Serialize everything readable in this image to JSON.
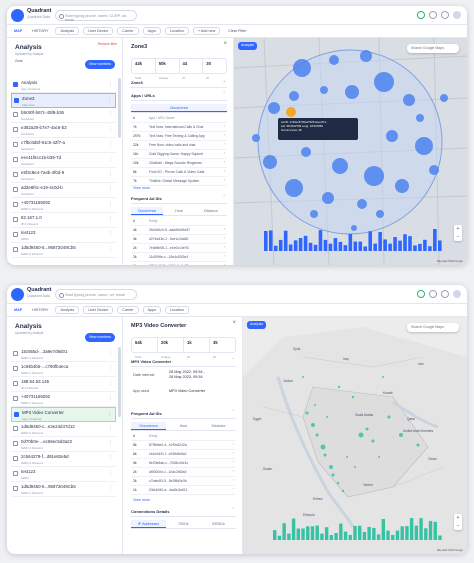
{
  "brand": {
    "name": "Quadrant",
    "tagline": "Quadrant Data"
  },
  "search_placeholder": "Start typing phone, name, CURP, url, email",
  "search_placeholder_short": "Start typing phone, name, url, email",
  "nav": {
    "map": "MAP",
    "history": "HISTORY"
  },
  "filters": {
    "analysis": "Analysis",
    "user_device": "User Device",
    "carrier": "Carrier",
    "apps": "Apps",
    "location": "Location",
    "add_new": "+ Add new",
    "clear": "Clear Filter"
  },
  "panelA": {
    "title": "Analysis",
    "subtitle": "Updated by Analyst",
    "clear_all": "Remove filter",
    "filter_label": "Zone",
    "view_button": "View numbers",
    "items": [
      {
        "title": "Analysis",
        "sub": "App of interest",
        "checked": true
      },
      {
        "title": "Zone3",
        "sub": "Map area",
        "checked": true
      },
      {
        "title": "b9c90f-b67c-45f8-b36",
        "sub": "Ad Advert",
        "checked": false
      },
      {
        "title": "e382a29-b7e7-4ac6-b2",
        "sub": "Ad Advert",
        "checked": false
      },
      {
        "title": "c7fbc0d5f-91c5-42f7-a",
        "sub": "Ad Advert",
        "checked": false
      },
      {
        "title": "eec41f6cc15-b39-7d",
        "sub": "Ad Advert",
        "checked": false
      },
      {
        "title": "e5f3c8e4-7a4b-4f0d-9",
        "sub": "Ad Advert",
        "checked": false
      },
      {
        "title": "ad3e8f4c-e19-4c0d-b",
        "sub": "Ad Advert",
        "checked": false
      },
      {
        "title": "+40731169292",
        "sub": "MAID 4 Inbound",
        "checked": false
      },
      {
        "title": "82.167.1.0",
        "sub": "IP 4 Inbound",
        "checked": false
      },
      {
        "title": "test123",
        "sub": "MAID",
        "checked": false
      },
      {
        "title": "1d5d9450-5...95872049Cb5",
        "sub": "MAID 4 Inbound",
        "checked": false
      }
    ]
  },
  "detailA": {
    "title": "Zone3",
    "stats": [
      {
        "v": "44k",
        "l": "Total"
      },
      {
        "v": "50k",
        "l": "Unique"
      },
      {
        "v": "44",
        "l": "IP"
      },
      {
        "v": "30",
        "l": "IP"
      }
    ],
    "section1": "Zone3",
    "section2": "Apps / URLs",
    "seg": [
      "Occurrence"
    ],
    "app_rows": [
      {
        "n": "#",
        "v": "App / URL Name"
      },
      {
        "n": "7k",
        "v": "Text Now: International Calls & Chat"
      },
      {
        "n": "297k",
        "v": "Text Now: Free Texting & Calling App"
      },
      {
        "n": "22k",
        "v": "Free Now: video calls and chat"
      },
      {
        "n": "11k",
        "v": "Gold Digging Game: Happy Squirrel"
      },
      {
        "n": "10k",
        "v": "Clickbait - Mega Sounds Ringtones"
      },
      {
        "n": "8k",
        "v": "Find GO - Phone Calls & Video Calls"
      },
      {
        "n": "7k",
        "v": "ThisBot: Global Message Spoken"
      }
    ],
    "view_more": "View more",
    "section3": "Frequent Ad IDs",
    "segs3": [
      "Occurrence",
      "Hour",
      "Distance"
    ],
    "ad_rows": [
      {
        "n": "#",
        "v": "Entity"
      },
      {
        "n": "4k",
        "v": "26c0d0c0-5...aa6d9cb9a37"
      },
      {
        "n": "3k",
        "v": "d27ea43e-2...5ce1c2da52"
      },
      {
        "n": "2k",
        "v": "7edb5b55-1...e4e0c14e93"
      },
      {
        "n": "2k",
        "v": "11d2f96e-c...15e4c52f3e4"
      },
      {
        "n": "1k",
        "v": "2f8b1c5f-7...b2b5e1c5e27"
      },
      {
        "n": "1k",
        "v": "796ef5e0-d...ac1a1f6f8cd"
      }
    ]
  },
  "mapA": {
    "analysis_btn": "Analysis",
    "search": "Search Google Maps",
    "tooltip_title": "Ad ID: 1726ec57b5a17525-feea 8f d...",
    "tooltip_l1": "Lat: 38.9012765   Long: 18.007881",
    "tooltip_l2": "Occurrences: 46",
    "attrib": "Map data ©2023 Google"
  },
  "panelB": {
    "title": "Analysis",
    "subtitle": "Updated by Analyst",
    "view_button": "View numbers",
    "items": [
      {
        "title": "15c555d-...3a9e7d9d01",
        "sub": "MAID 4 Inbound",
        "checked": false
      },
      {
        "title": "1c94b4b5-...c790fb4eca",
        "sub": "MAID 4 Inbound",
        "checked": false
      },
      {
        "title": "188.54.53.145",
        "sub": "IP 4 Inbound",
        "checked": false
      },
      {
        "title": "+40731169292",
        "sub": "MAID 4 Inbound",
        "checked": false
      },
      {
        "title": "MP3 Video Converter",
        "sub": "App of interest",
        "checked": true
      },
      {
        "title": "1d5d9450-c...e3e24d47d12",
        "sub": "MAID 4 Inbound",
        "checked": false
      },
      {
        "title": "0d70b0e-...ec69ec5d3a22",
        "sub": "MAID 4 Inbound",
        "checked": false
      },
      {
        "title": "2c564278-f...d91e82e5d",
        "sub": "MAID 4 Inbound",
        "checked": false
      },
      {
        "title": "test123",
        "sub": "MAID",
        "checked": false
      },
      {
        "title": "1d5d9450-5...95872049Cb5",
        "sub": "MAID 4 Inbound",
        "checked": false
      }
    ]
  },
  "detailB": {
    "title": "MP3 Video Converter",
    "stats": [
      {
        "v": "64k",
        "l": "Total"
      },
      {
        "v": "20k",
        "l": "Unique"
      },
      {
        "v": "1k",
        "l": "IP"
      },
      {
        "v": "3k",
        "l": "IP"
      }
    ],
    "section1": "MP3 Video Converter",
    "kv": [
      {
        "k": "Date interval",
        "v": "28 May 2022, 09:54 -\n28 May 2023, 09:54"
      },
      {
        "k": "App used",
        "v": "MP3 Video Converter"
      }
    ],
    "section2": "Frequent Ad IDs",
    "segs": [
      "Occurrence",
      "Hour",
      "Distance"
    ],
    "ad_rows": [
      {
        "n": "#",
        "v": "Entity"
      },
      {
        "n": "8k",
        "v": "87f5b6e0-4...b2f0c5242a"
      },
      {
        "n": "6k",
        "v": "cb1e0d31-f...e92fc8e5a2"
      },
      {
        "n": "5k",
        "v": "6e23e6ab-c...7b28c40e1c"
      },
      {
        "n": "2k",
        "v": "a5f30c0d-c...1b4c26f2a5"
      },
      {
        "n": "2k",
        "v": "c7bab4f3-5...5e2f8d0e3b"
      },
      {
        "n": "1k",
        "v": "f26e1b50-a...4ad0c3e611"
      }
    ],
    "view_more": "View more",
    "section3": "Connections Details",
    "segs3": [
      "IP Addresses",
      "SSIDs",
      "BSSIDs"
    ]
  },
  "mapB": {
    "analysis_btn": "Analysis",
    "search": "Search Google Maps",
    "labels": [
      "Syria",
      "Iraq",
      "Iran",
      "Jordan",
      "Kuwait",
      "Saudi Arabia",
      "Qatar",
      "United Arab Emirates",
      "Egypt",
      "Oman",
      "Sudan",
      "Yemen",
      "Eritrea",
      "Ethiopia"
    ],
    "attrib": "Map data ©2023 Google"
  },
  "colors": {
    "accent": "#2f66ff",
    "green": "#2fb36f",
    "danger": "#e5484d"
  }
}
